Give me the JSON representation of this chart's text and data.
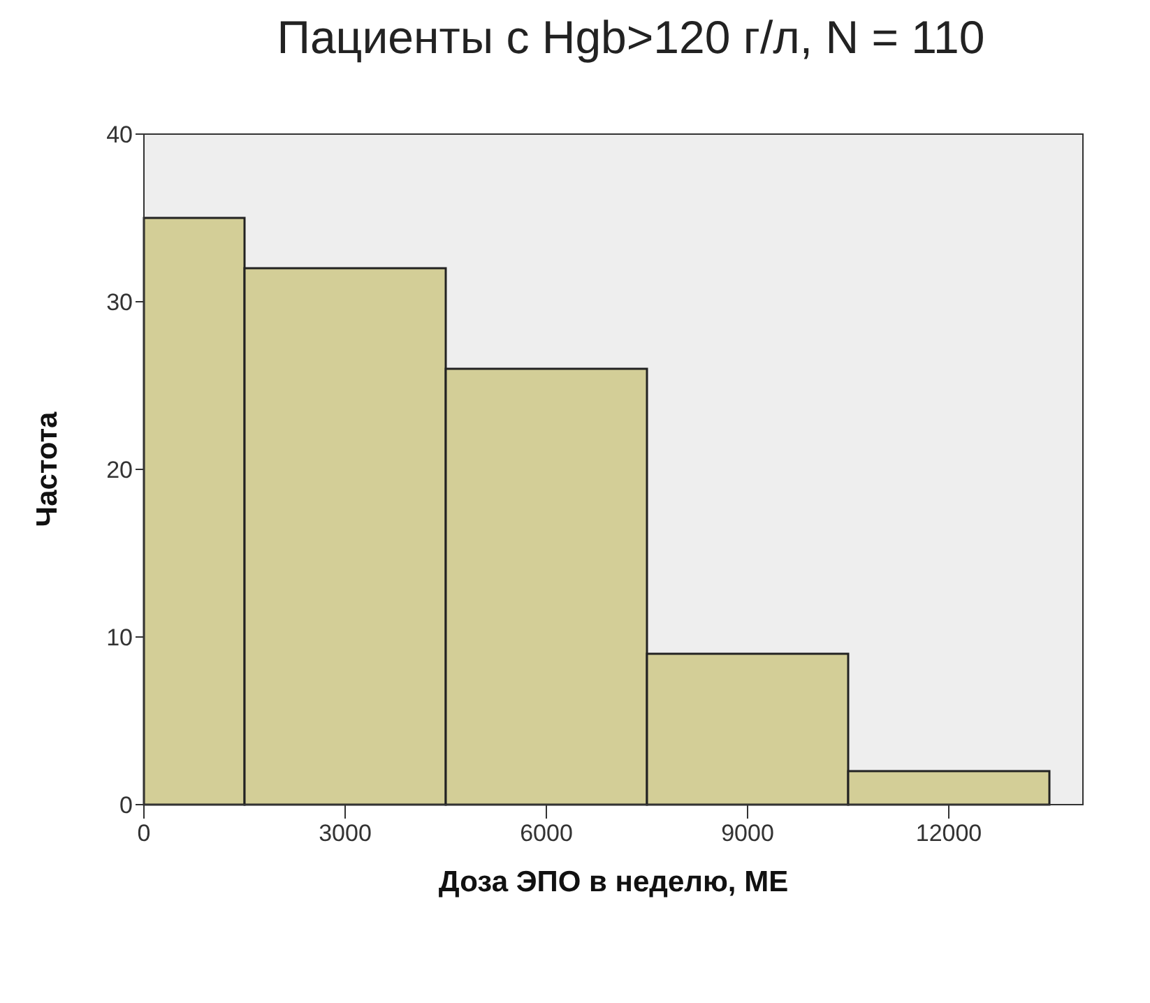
{
  "chart_data": {
    "type": "histogram",
    "title": "Пациенты с Hgb>120 г/л, N = 110",
    "xlabel": "Доза ЭПО в неделю, МЕ",
    "ylabel": "Частота",
    "bins": [
      0,
      1500,
      4500,
      7500,
      10500,
      13500
    ],
    "values": [
      35,
      32,
      26,
      9,
      2
    ],
    "color": "#d3ce97",
    "xlim": [
      0,
      14000
    ],
    "xticks": [
      0,
      3000,
      6000,
      9000,
      12000
    ],
    "ylim": [
      0,
      40
    ],
    "yticks": [
      0,
      10,
      20,
      30,
      40
    ]
  }
}
